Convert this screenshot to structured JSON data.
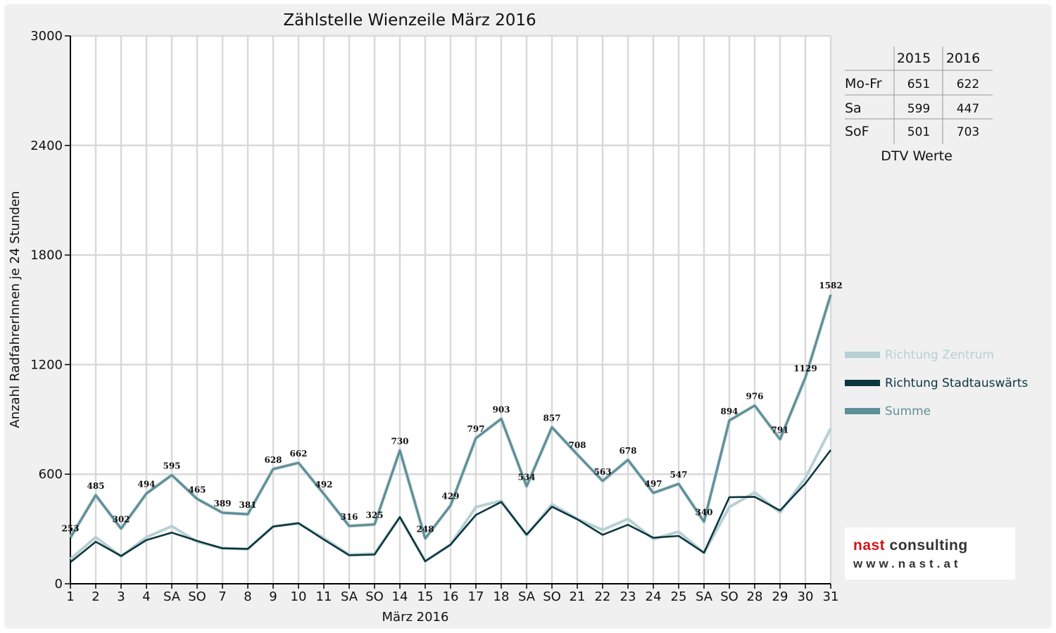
{
  "chart_data": {
    "type": "line",
    "title": "Zählstelle Wienzeile März 2016",
    "xlabel": "März 2016",
    "ylabel": "Anzahl RadfahrerInnen je 24 Stunden",
    "ylim": [
      0,
      3000
    ],
    "yticks": [
      "0",
      "600",
      "1200",
      "1800",
      "2400",
      "3000"
    ],
    "grid": true,
    "legend_position": "right",
    "categories": [
      "1",
      "2",
      "3",
      "4",
      "SA",
      "SO",
      "7",
      "8",
      "9",
      "10",
      "11",
      "SA",
      "SO",
      "14",
      "15",
      "16",
      "17",
      "18",
      "SA",
      "SO",
      "21",
      "22",
      "23",
      "24",
      "25",
      "SA",
      "SO",
      "28",
      "29",
      "30",
      "31"
    ],
    "highlighted_categories": [
      5,
      12,
      19,
      26,
      27
    ],
    "series": [
      {
        "name": "Richtung Zentrum",
        "color": "#b7d0d3",
        "values": [
          135,
          255,
          150,
          255,
          315,
          230,
          195,
          190,
          315,
          330,
          250,
          160,
          165,
          365,
          125,
          215,
          420,
          455,
          265,
          435,
          355,
          295,
          355,
          245,
          285,
          170,
          420,
          500,
          390,
          580,
          850
        ]
      },
      {
        "name": "Richtung Stadtauswärts",
        "color": "#0c3640",
        "values": [
          118,
          230,
          152,
          239,
          280,
          235,
          194,
          191,
          313,
          332,
          242,
          156,
          160,
          365,
          123,
          214,
          377,
          448,
          269,
          422,
          353,
          268,
          323,
          252,
          262,
          170,
          474,
          476,
          401,
          549,
          732
        ]
      },
      {
        "name": "Summe",
        "color": "#5f8f98",
        "values": [
          253,
          485,
          302,
          494,
          595,
          465,
          389,
          381,
          628,
          662,
          492,
          316,
          325,
          730,
          248,
          429,
          797,
          903,
          534,
          857,
          708,
          563,
          678,
          497,
          547,
          340,
          894,
          976,
          791,
          1129,
          1582
        ]
      }
    ],
    "data_labels": [
      "253",
      "485",
      "302",
      "494",
      "595",
      "465",
      "389",
      "381",
      "628",
      "662",
      "492",
      "316",
      "325",
      "730",
      "248",
      "429",
      "797",
      "903",
      "534",
      "857",
      "708",
      "563",
      "678",
      "497",
      "547",
      "340",
      "894",
      "976",
      "791",
      "1129",
      "1582"
    ]
  },
  "dtv_table": {
    "headers": [
      "2015",
      "2016"
    ],
    "rows": [
      {
        "label": "Mo-Fr",
        "v2015": "651",
        "v2016": "622"
      },
      {
        "label": "Sa",
        "v2015": "599",
        "v2016": "447"
      },
      {
        "label": "SoF",
        "v2015": "501",
        "v2016": "703"
      }
    ],
    "caption": "DTV Werte"
  },
  "logo": {
    "brand_red": "nast",
    "brand_rest": " consulting",
    "url": "www.nast.at",
    "red_color": "#d01818"
  },
  "colors": {
    "highlight": "#e00000",
    "grid": "#d9d9d9"
  }
}
